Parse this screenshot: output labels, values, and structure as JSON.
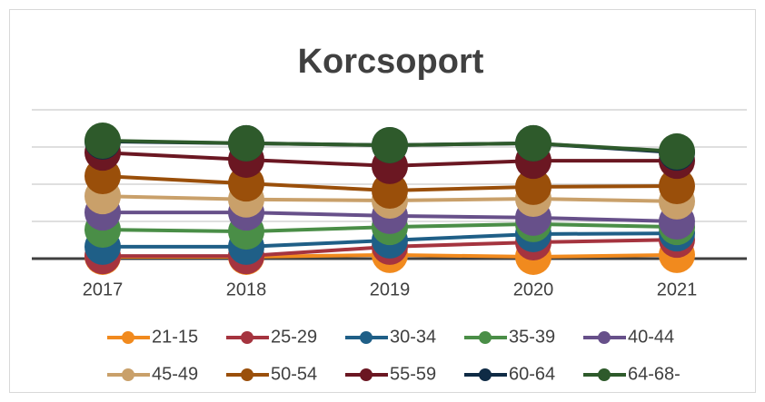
{
  "chart_data": {
    "type": "line",
    "title": "Korcsoport",
    "categories": [
      "2017",
      "2018",
      "2019",
      "2020",
      "2021"
    ],
    "ylim": [
      0,
      40
    ],
    "yticks": [
      0,
      10,
      20,
      30,
      40
    ],
    "grid": true,
    "legend": "bottom",
    "series": [
      {
        "name": "21-15",
        "color": "#f18a1e",
        "values": [
          0.5,
          0.5,
          1,
          0.5,
          1
        ]
      },
      {
        "name": "25-29",
        "color": "#a5343f",
        "values": [
          0.7,
          0.7,
          3.2,
          4.4,
          5.1
        ]
      },
      {
        "name": "30-34",
        "color": "#1f5f87",
        "values": [
          3.2,
          3.2,
          4.9,
          6.6,
          6.8
        ]
      },
      {
        "name": "35-39",
        "color": "#4a8e47",
        "values": [
          7.8,
          7.3,
          8.5,
          9.3,
          8.5
        ]
      },
      {
        "name": "40-44",
        "color": "#67508a",
        "values": [
          12.4,
          12.4,
          11.5,
          11,
          10
        ]
      },
      {
        "name": "45-49",
        "color": "#c9a06a",
        "values": [
          16.8,
          15.9,
          15.6,
          16.1,
          15.4
        ]
      },
      {
        "name": "50-54",
        "color": "#9a4f0a",
        "values": [
          22.2,
          20.2,
          18.3,
          19.3,
          19.5
        ]
      },
      {
        "name": "55-59",
        "color": "#6b1722",
        "values": [
          28.5,
          26.6,
          24.9,
          26.3,
          26.3
        ]
      },
      {
        "name": "60-64",
        "color": "#0f2b45",
        "values": [
          31.5,
          31,
          30.5,
          31,
          28.5
        ]
      },
      {
        "name": "64-68-",
        "color": "#2e5a2b",
        "values": [
          31.7,
          31,
          30.5,
          31,
          28.8
        ]
      }
    ]
  }
}
